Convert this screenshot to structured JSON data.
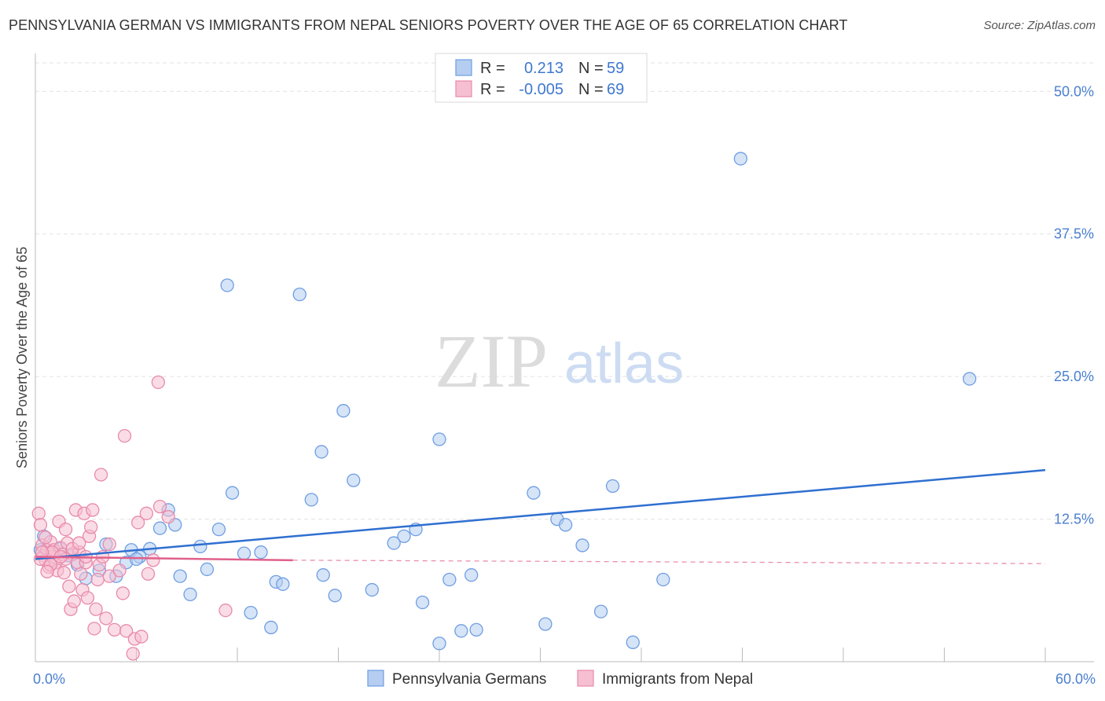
{
  "title": "PENNSYLVANIA GERMAN VS IMMIGRANTS FROM NEPAL SENIORS POVERTY OVER THE AGE OF 65 CORRELATION CHART",
  "source": "Source: ZipAtlas.com",
  "watermark": {
    "zip": "ZIP",
    "atlas": "atlas"
  },
  "legend_stats": [
    {
      "r_label": "R =",
      "r_value": "0.213",
      "n_label": "N =",
      "n_value": "59"
    },
    {
      "r_label": "R =",
      "r_value": "-0.005",
      "n_label": "N =",
      "n_value": "69"
    }
  ],
  "chart_data": {
    "type": "scatter",
    "title": "PENNSYLVANIA GERMAN VS IMMIGRANTS FROM NEPAL SENIORS POVERTY OVER THE AGE OF 65 CORRELATION CHART",
    "xlabel": "",
    "ylabel": "Seniors Poverty Over the Age of 65",
    "xlim": [
      0,
      60
    ],
    "ylim": [
      0,
      52.5
    ],
    "x_tick_labels": [
      "0.0%",
      "60.0%"
    ],
    "y_ticks": [
      12.5,
      25.0,
      37.5,
      50.0
    ],
    "y_tick_labels": [
      "12.5%",
      "25.0%",
      "37.5%",
      "50.0%"
    ],
    "grid": true,
    "legend_position": "top-center",
    "series": [
      {
        "name": "Pennsylvania Germans",
        "color": "#6f9ee3",
        "fill": "#b5cdf0",
        "trend_color": "#2f6fd0",
        "trend": {
          "x": [
            0,
            60
          ],
          "y": [
            9.0,
            16.8
          ],
          "dashed_x": null
        },
        "points": [
          [
            0.5,
            11.0
          ],
          [
            1.5,
            9.9
          ],
          [
            2.5,
            8.5
          ],
          [
            3.8,
            8.0
          ],
          [
            4.2,
            10.3
          ],
          [
            4.8,
            7.5
          ],
          [
            5.4,
            8.7
          ],
          [
            5.7,
            9.8
          ],
          [
            6.2,
            9.2
          ],
          [
            6.8,
            9.9
          ],
          [
            7.4,
            11.7
          ],
          [
            7.9,
            13.3
          ],
          [
            8.3,
            12.0
          ],
          [
            8.6,
            7.5
          ],
          [
            9.2,
            5.9
          ],
          [
            9.8,
            10.1
          ],
          [
            10.2,
            8.1
          ],
          [
            10.9,
            11.6
          ],
          [
            11.4,
            33.0
          ],
          [
            11.7,
            14.8
          ],
          [
            12.4,
            9.5
          ],
          [
            12.8,
            4.3
          ],
          [
            13.4,
            9.6
          ],
          [
            14.0,
            3.0
          ],
          [
            14.3,
            7.0
          ],
          [
            14.7,
            6.8
          ],
          [
            15.7,
            32.2
          ],
          [
            16.4,
            14.2
          ],
          [
            17.0,
            18.4
          ],
          [
            17.1,
            7.6
          ],
          [
            17.8,
            5.8
          ],
          [
            18.3,
            22.0
          ],
          [
            18.9,
            15.9
          ],
          [
            20.0,
            6.3
          ],
          [
            21.3,
            10.4
          ],
          [
            21.9,
            11.0
          ],
          [
            22.6,
            11.6
          ],
          [
            23.0,
            5.2
          ],
          [
            24.0,
            19.5
          ],
          [
            24.0,
            1.6
          ],
          [
            24.6,
            7.2
          ],
          [
            25.3,
            2.7
          ],
          [
            25.9,
            7.6
          ],
          [
            26.2,
            2.8
          ],
          [
            29.6,
            14.8
          ],
          [
            30.3,
            3.3
          ],
          [
            31.0,
            12.5
          ],
          [
            31.5,
            12.0
          ],
          [
            32.5,
            10.2
          ],
          [
            33.6,
            4.4
          ],
          [
            34.3,
            15.4
          ],
          [
            35.5,
            1.7
          ],
          [
            37.3,
            7.2
          ],
          [
            41.9,
            44.1
          ],
          [
            55.5,
            24.8
          ],
          [
            0.3,
            9.8
          ],
          [
            2.0,
            9.3
          ],
          [
            6.0,
            9.0
          ],
          [
            3.0,
            7.3
          ]
        ]
      },
      {
        "name": "Immigrants from Nepal",
        "color": "#e88aaa",
        "fill": "#f6bfd2",
        "trend_color": "#e0608a",
        "trend": {
          "x": [
            0,
            15.3
          ],
          "y": [
            9.2,
            8.9
          ],
          "dashed_x": [
            15.3,
            60
          ],
          "dashed_y": [
            8.9,
            8.6
          ]
        },
        "points": [
          [
            0.2,
            13.0
          ],
          [
            0.3,
            12.0
          ],
          [
            0.4,
            10.2
          ],
          [
            0.5,
            9.3
          ],
          [
            0.6,
            8.9
          ],
          [
            0.7,
            9.8
          ],
          [
            0.8,
            8.3
          ],
          [
            0.9,
            10.5
          ],
          [
            1.0,
            9.2
          ],
          [
            1.1,
            9.8
          ],
          [
            1.2,
            8.7
          ],
          [
            1.3,
            8.0
          ],
          [
            1.4,
            12.3
          ],
          [
            1.5,
            10.0
          ],
          [
            1.6,
            9.4
          ],
          [
            1.7,
            7.8
          ],
          [
            1.8,
            11.6
          ],
          [
            1.9,
            10.4
          ],
          [
            2.0,
            6.6
          ],
          [
            2.1,
            4.6
          ],
          [
            2.2,
            9.4
          ],
          [
            2.3,
            5.3
          ],
          [
            2.4,
            13.3
          ],
          [
            2.5,
            8.7
          ],
          [
            2.6,
            9.6
          ],
          [
            2.7,
            7.7
          ],
          [
            2.8,
            6.3
          ],
          [
            2.9,
            13.0
          ],
          [
            3.0,
            8.7
          ],
          [
            3.1,
            5.6
          ],
          [
            3.2,
            11.0
          ],
          [
            3.3,
            11.8
          ],
          [
            3.4,
            13.3
          ],
          [
            3.5,
            2.9
          ],
          [
            3.6,
            4.6
          ],
          [
            3.7,
            7.2
          ],
          [
            3.8,
            8.5
          ],
          [
            3.9,
            16.4
          ],
          [
            4.0,
            9.2
          ],
          [
            4.2,
            3.8
          ],
          [
            4.4,
            7.5
          ],
          [
            4.7,
            2.8
          ],
          [
            5.0,
            8.0
          ],
          [
            5.2,
            6.0
          ],
          [
            5.3,
            19.8
          ],
          [
            5.4,
            2.7
          ],
          [
            5.8,
            0.7
          ],
          [
            5.9,
            2.0
          ],
          [
            6.1,
            12.2
          ],
          [
            6.3,
            2.2
          ],
          [
            6.6,
            13.0
          ],
          [
            6.7,
            7.7
          ],
          [
            7.0,
            8.9
          ],
          [
            7.3,
            24.5
          ],
          [
            7.4,
            13.6
          ],
          [
            7.9,
            12.7
          ],
          [
            11.3,
            4.5
          ],
          [
            0.3,
            9.0
          ],
          [
            1.0,
            9.6
          ],
          [
            0.6,
            10.9
          ],
          [
            2.2,
            9.9
          ],
          [
            1.8,
            9.0
          ],
          [
            3.0,
            9.2
          ],
          [
            0.9,
            8.5
          ],
          [
            1.5,
            9.2
          ],
          [
            2.6,
            10.4
          ],
          [
            0.4,
            9.6
          ],
          [
            4.4,
            10.3
          ],
          [
            0.7,
            7.9
          ]
        ]
      }
    ]
  },
  "bottom_legend": [
    "Pennsylvania Germans",
    "Immigrants from Nepal"
  ]
}
